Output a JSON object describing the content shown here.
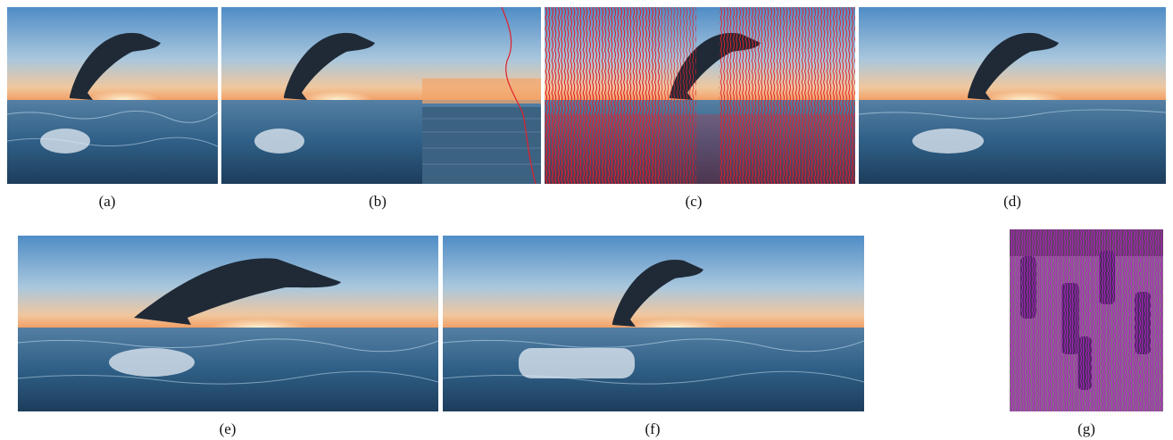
{
  "figure": {
    "panels": [
      {
        "id": "a",
        "caption": "(a)"
      },
      {
        "id": "b",
        "caption": "(b)"
      },
      {
        "id": "c",
        "caption": "(c)"
      },
      {
        "id": "d",
        "caption": "(d)"
      },
      {
        "id": "e",
        "caption": "(e)"
      },
      {
        "id": "f",
        "caption": "(f)"
      },
      {
        "id": "g",
        "caption": "(g)"
      }
    ],
    "colors": {
      "seam_red": "#e0202a",
      "seam_magenta": "#b020c8",
      "sky_top": "#6fa6d6",
      "sky_horizon": "#f3b07a",
      "sea": "#2f5f86",
      "dolphin": "#1f2a36"
    }
  }
}
